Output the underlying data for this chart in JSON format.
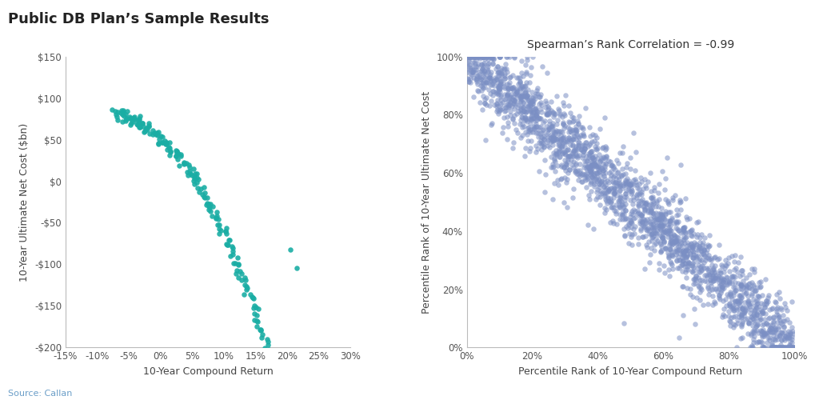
{
  "title": "Public DB Plan’s Sample Results",
  "source_text": "Source: Callan",
  "left_xlabel": "10-Year Compound Return",
  "left_ylabel": "10-Year Ultimate Net Cost ($bn)",
  "left_xlim": [
    -0.15,
    0.3
  ],
  "left_ylim": [
    -200,
    150
  ],
  "left_xticks": [
    -0.15,
    -0.1,
    -0.05,
    0.0,
    0.05,
    0.1,
    0.15,
    0.2,
    0.25,
    0.3
  ],
  "left_yticks": [
    -200,
    -150,
    -100,
    -50,
    0,
    50,
    100,
    150
  ],
  "left_color": "#1aada4",
  "right_xlabel": "Percentile Rank of 10-Year Compound Return",
  "right_ylabel": "Percentile Rank of 10-Year Ultimate Net Cost",
  "right_xlim": [
    0,
    1.0
  ],
  "right_ylim": [
    0,
    1.0
  ],
  "right_xticks": [
    0.0,
    0.2,
    0.4,
    0.6,
    0.8,
    1.0
  ],
  "right_yticks": [
    0.0,
    0.2,
    0.4,
    0.6,
    0.8,
    1.0
  ],
  "right_color": "#7b8fc4",
  "right_annotation": "Spearman’s Rank Correlation = -0.99",
  "title_fontsize": 13,
  "axis_label_fontsize": 9,
  "tick_fontsize": 8.5,
  "source_fontsize": 8,
  "annotation_fontsize": 10
}
